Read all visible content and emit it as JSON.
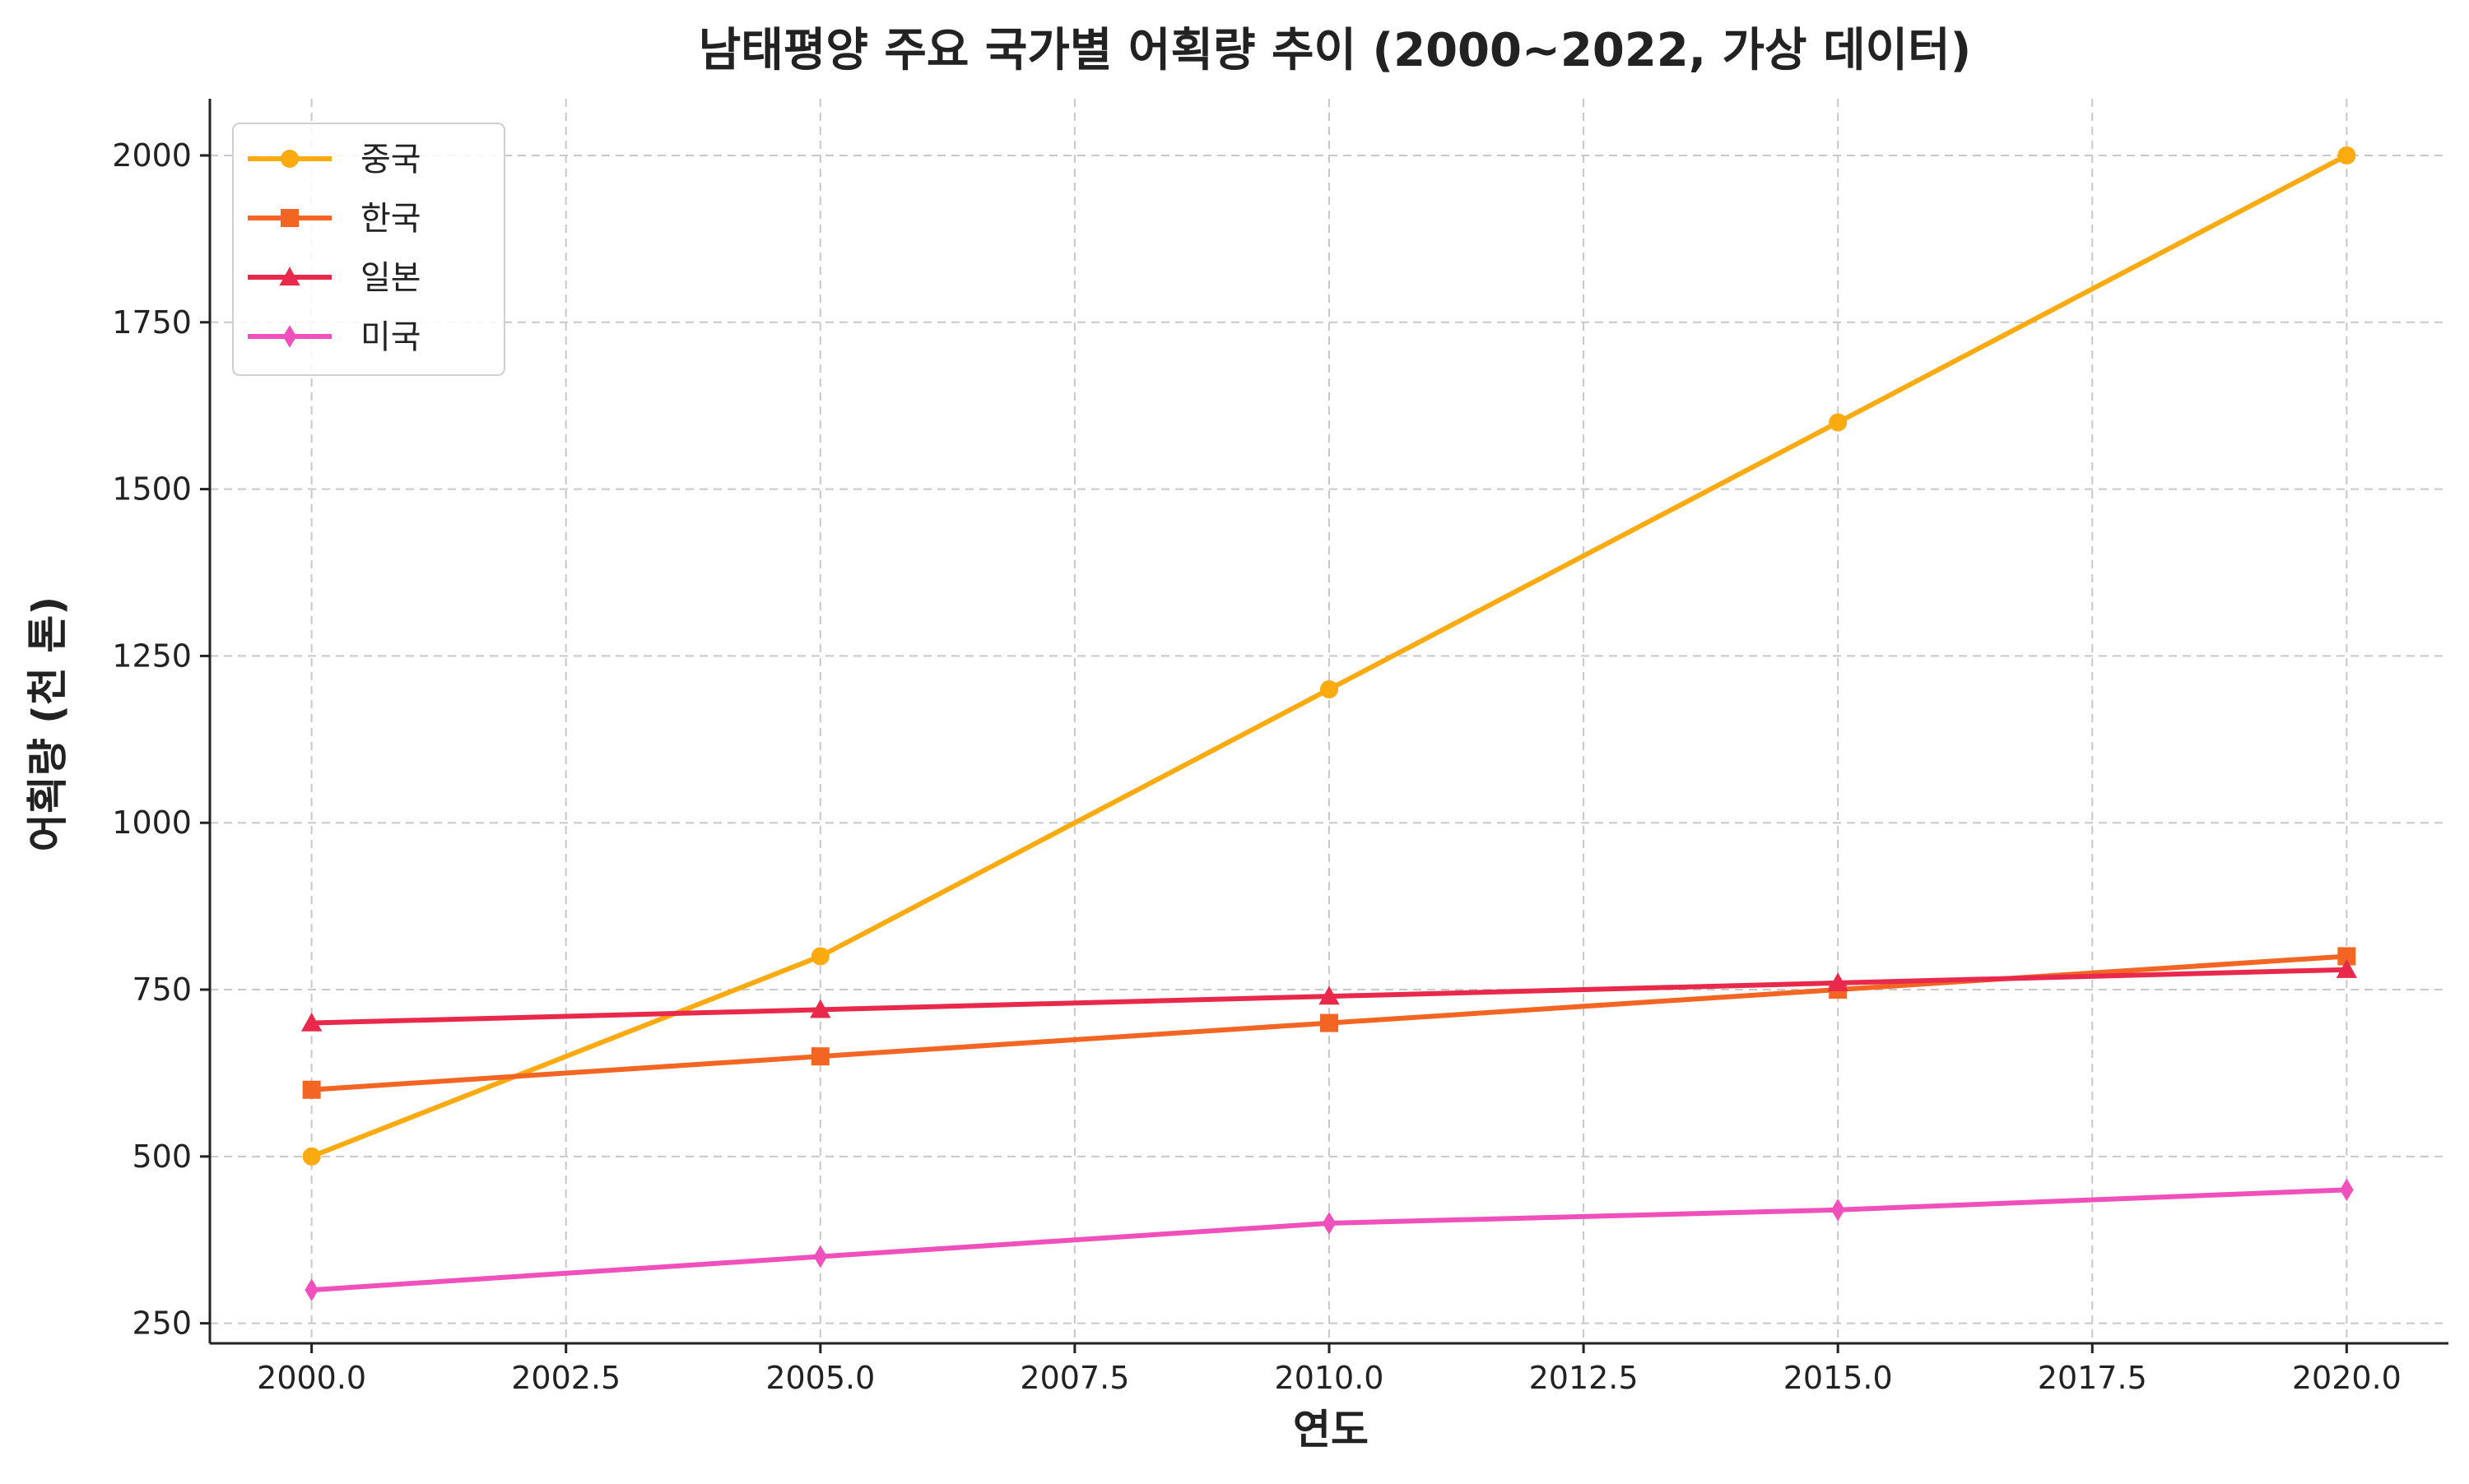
{
  "chart_data": {
    "type": "line",
    "title": "남태평양 주요 국가별 어획량 추이 (2000~2022, 가상 데이터)",
    "xlabel": "연도",
    "ylabel": "어획량 (천 톤)",
    "x": [
      2000,
      2005,
      2010,
      2015,
      2020
    ],
    "xlim": [
      1999,
      2021
    ],
    "ylim": [
      220,
      2085
    ],
    "xticks": [
      2000.0,
      2002.5,
      2005.0,
      2007.5,
      2010.0,
      2012.5,
      2015.0,
      2017.5,
      2020.0
    ],
    "xtick_labels": [
      "2000.0",
      "2002.5",
      "2005.0",
      "2007.5",
      "2010.0",
      "2012.5",
      "2015.0",
      "2017.5",
      "2020.0"
    ],
    "yticks": [
      250,
      500,
      750,
      1000,
      1250,
      1500,
      1750,
      2000
    ],
    "ytick_labels": [
      "250",
      "500",
      "750",
      "1000",
      "1250",
      "1500",
      "1750",
      "2000"
    ],
    "grid": true,
    "legend_position": "top-left",
    "series": [
      {
        "name": "중국",
        "values": [
          500,
          800,
          1200,
          1600,
          2000
        ],
        "color": "#FBAA0F",
        "marker": "circle"
      },
      {
        "name": "한국",
        "values": [
          600,
          650,
          700,
          750,
          800
        ],
        "color": "#F26522",
        "marker": "square"
      },
      {
        "name": "일본",
        "values": [
          700,
          720,
          740,
          760,
          780
        ],
        "color": "#E8294B",
        "marker": "triangle"
      },
      {
        "name": "미국",
        "values": [
          300,
          350,
          400,
          420,
          450
        ],
        "color": "#F050BC",
        "marker": "diamond"
      }
    ]
  }
}
